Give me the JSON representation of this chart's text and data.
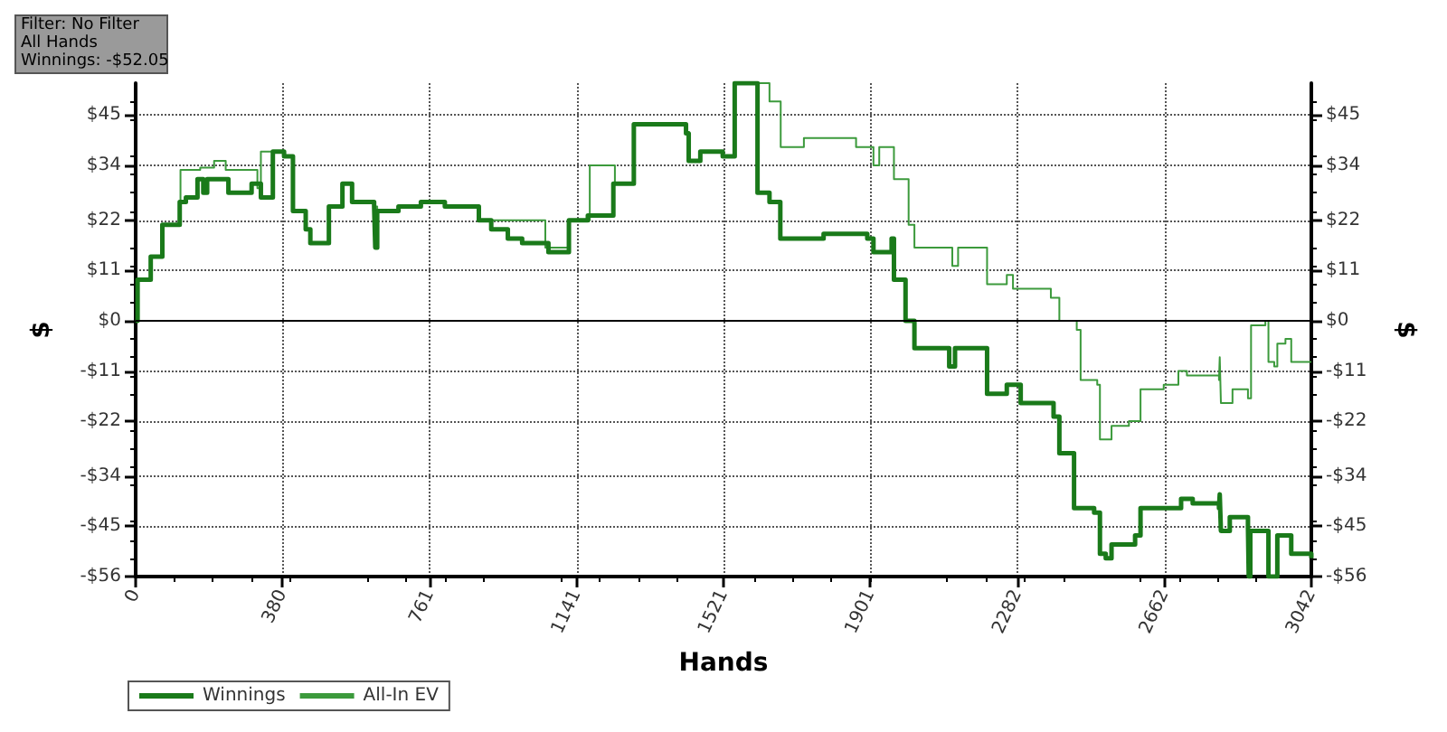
{
  "chart_data": {
    "type": "step",
    "xlabel": "Hands",
    "ylabel": "$",
    "y2label": "$",
    "annotations": [
      "Filter: No Filter",
      "All Hands",
      "Winnings: -$52.05"
    ],
    "xlim": [
      0,
      3042
    ],
    "xticks": [
      0,
      380,
      761,
      1141,
      1521,
      1901,
      2282,
      2662,
      3042
    ],
    "ylim": [
      -56,
      52
    ],
    "yticks": [
      {
        "value": -56,
        "label": "-$56"
      },
      {
        "value": -45,
        "label": "-$45"
      },
      {
        "value": -34,
        "label": "-$34"
      },
      {
        "value": -22,
        "label": "-$22"
      },
      {
        "value": -11,
        "label": "-$11"
      },
      {
        "value": 0,
        "label": "$0"
      },
      {
        "value": 11,
        "label": "$11"
      },
      {
        "value": 22,
        "label": "$22"
      },
      {
        "value": 34,
        "label": "$34"
      },
      {
        "value": 45,
        "label": "$45"
      }
    ],
    "y2lim": [
      -56,
      52
    ],
    "y2ticks": [
      {
        "value": -56,
        "label": "-$56"
      },
      {
        "value": -45,
        "label": "-$45"
      },
      {
        "value": -34,
        "label": "-$34"
      },
      {
        "value": -22,
        "label": "-$22"
      },
      {
        "value": -11,
        "label": "-$11"
      },
      {
        "value": 0,
        "label": "$0"
      },
      {
        "value": 11,
        "label": "$11"
      },
      {
        "value": 22,
        "label": "$22"
      },
      {
        "value": 34,
        "label": "$34"
      },
      {
        "value": 45,
        "label": "$45"
      }
    ],
    "grid": true,
    "legend": "bottom left",
    "marker": "none",
    "line_style": "solid",
    "ref_lines": [
      {
        "axis": "y",
        "value": 0,
        "color": "#000000"
      }
    ],
    "series": [
      {
        "name": "Winnings",
        "color": "#1a7a1a",
        "x": [
          0,
          5,
          39,
          69,
          114,
          130,
          160,
          175,
          185,
          240,
          300,
          324,
          355,
          384,
          407,
          440,
          452,
          500,
          535,
          560,
          617,
          620,
          625,
          680,
          738,
          800,
          888,
          920,
          963,
          1000,
          1068,
          1121,
          1170,
          1236,
          1289,
          1357,
          1424,
          1431,
          1461,
          1519,
          1550,
          1609,
          1640,
          1668,
          1780,
          1893,
          1909,
          1956,
          1962,
          1992,
          2015,
          2105,
          2120,
          2203,
          2254,
          2290,
          2375,
          2390,
          2428,
          2480,
          2495,
          2510,
          2525,
          2586,
          2600,
          2690,
          2705,
          2735,
          2803,
          2805,
          2808,
          2831,
          2878,
          2880,
          2884,
          2923,
          2931,
          2946,
          2954,
          2975,
          2990,
          3042
        ],
        "values": [
          0,
          9,
          14,
          21,
          26,
          27,
          31,
          28,
          31,
          28,
          30,
          27,
          37,
          36,
          24,
          20,
          17,
          25,
          30,
          26,
          25,
          16,
          24,
          25,
          26,
          25,
          22,
          20,
          18,
          17,
          15,
          22,
          23,
          30,
          43,
          43,
          41,
          35,
          37,
          36,
          52,
          28,
          26,
          18,
          19,
          18,
          15,
          18,
          9,
          0,
          -6,
          -10,
          -6,
          -16,
          -14,
          -18,
          -21,
          -29,
          -41,
          -42,
          -51,
          -52,
          -49,
          -47,
          -41,
          -41,
          -39,
          -40,
          -41,
          -38,
          -46,
          -43,
          -45,
          -56,
          -46,
          -46,
          -56,
          -56,
          -47,
          -47,
          -51,
          -52
        ]
      },
      {
        "name": "All-In EV",
        "color": "#3c9a3c",
        "x": [
          0,
          5,
          39,
          69,
          116,
          167,
          203,
          233,
          315,
          324,
          355,
          384,
          407,
          440,
          452,
          500,
          535,
          560,
          617,
          625,
          680,
          738,
          800,
          888,
          963,
          1060,
          1121,
          1175,
          1240,
          1289,
          1357,
          1424,
          1431,
          1461,
          1519,
          1550,
          1640,
          1669,
          1729,
          1864,
          1909,
          1924,
          1962,
          2000,
          2015,
          2113,
          2128,
          2203,
          2254,
          2270,
          2368,
          2390,
          2435,
          2445,
          2488,
          2495,
          2510,
          2525,
          2570,
          2600,
          2660,
          2698,
          2720,
          2803,
          2805,
          2808,
          2838,
          2878,
          2886,
          2923,
          2931,
          2946,
          2954,
          2975,
          2990,
          3042
        ],
        "values": [
          0,
          9,
          14,
          21,
          33,
          33.5,
          35,
          33,
          29,
          37,
          37,
          36,
          24,
          20,
          17,
          25,
          30,
          26,
          25,
          24,
          25,
          26,
          25,
          22,
          22,
          16,
          22,
          34,
          30,
          43,
          43,
          41,
          35,
          37,
          36,
          52,
          48,
          38,
          40,
          38,
          34,
          38,
          31,
          21,
          16,
          12,
          16,
          8,
          10,
          7,
          5,
          0,
          -2,
          -13,
          -14,
          -26,
          -26,
          -23,
          -22,
          -15,
          -14,
          -11,
          -12,
          -13,
          -8,
          -18,
          -15,
          -17,
          -1,
          0,
          -9,
          -10,
          -5,
          -4,
          -9,
          -9
        ]
      }
    ]
  }
}
